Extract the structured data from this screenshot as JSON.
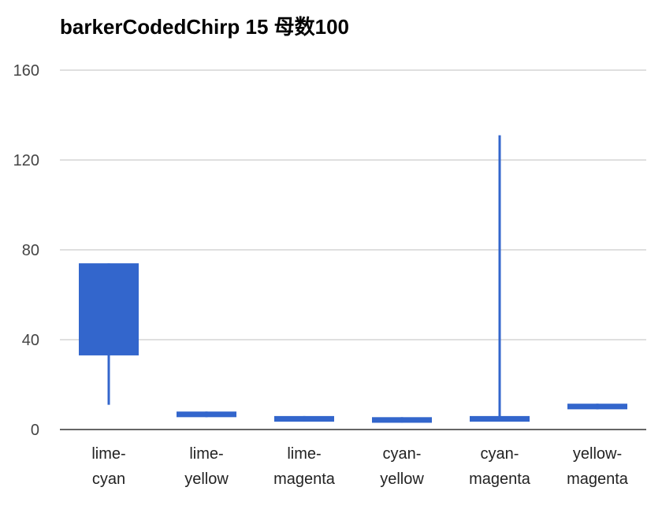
{
  "chart_data": {
    "type": "candlestick",
    "title": "barkerCodedChirp 15 母数100",
    "xlabel": "",
    "ylabel": "",
    "ylim": [
      0,
      160
    ],
    "yticks": [
      0,
      40,
      80,
      120,
      160
    ],
    "grid": true,
    "legend": "none",
    "categories": [
      "lime-cyan",
      "lime-yellow",
      "lime-magenta",
      "cyan-yellow",
      "cyan-magenta",
      "yellow-magenta"
    ],
    "category_lines": [
      [
        "lime-",
        "cyan"
      ],
      [
        "lime-",
        "yellow"
      ],
      [
        "lime-",
        "magenta"
      ],
      [
        "cyan-",
        "yellow"
      ],
      [
        "cyan-",
        "magenta"
      ],
      [
        "yellow-",
        "magenta"
      ]
    ],
    "series": [
      {
        "values": [
          {
            "low": 11,
            "open": 33,
            "close": 74,
            "high": 74
          },
          {
            "low": 5.5,
            "open": 5.5,
            "close": 8,
            "high": 8
          },
          {
            "low": 3.5,
            "open": 3.5,
            "close": 6,
            "high": 6
          },
          {
            "low": 3,
            "open": 3,
            "close": 5.5,
            "high": 5.5
          },
          {
            "low": 3.5,
            "open": 3.5,
            "close": 6,
            "high": 131
          }
        ]
      }
    ],
    "extra": [
      {
        "low": 9,
        "open": 9,
        "close": 11.5,
        "high": 11.5
      }
    ],
    "colors": {
      "bar": "#3366cc",
      "grid": "#cccccc",
      "axis": "#333333"
    }
  }
}
